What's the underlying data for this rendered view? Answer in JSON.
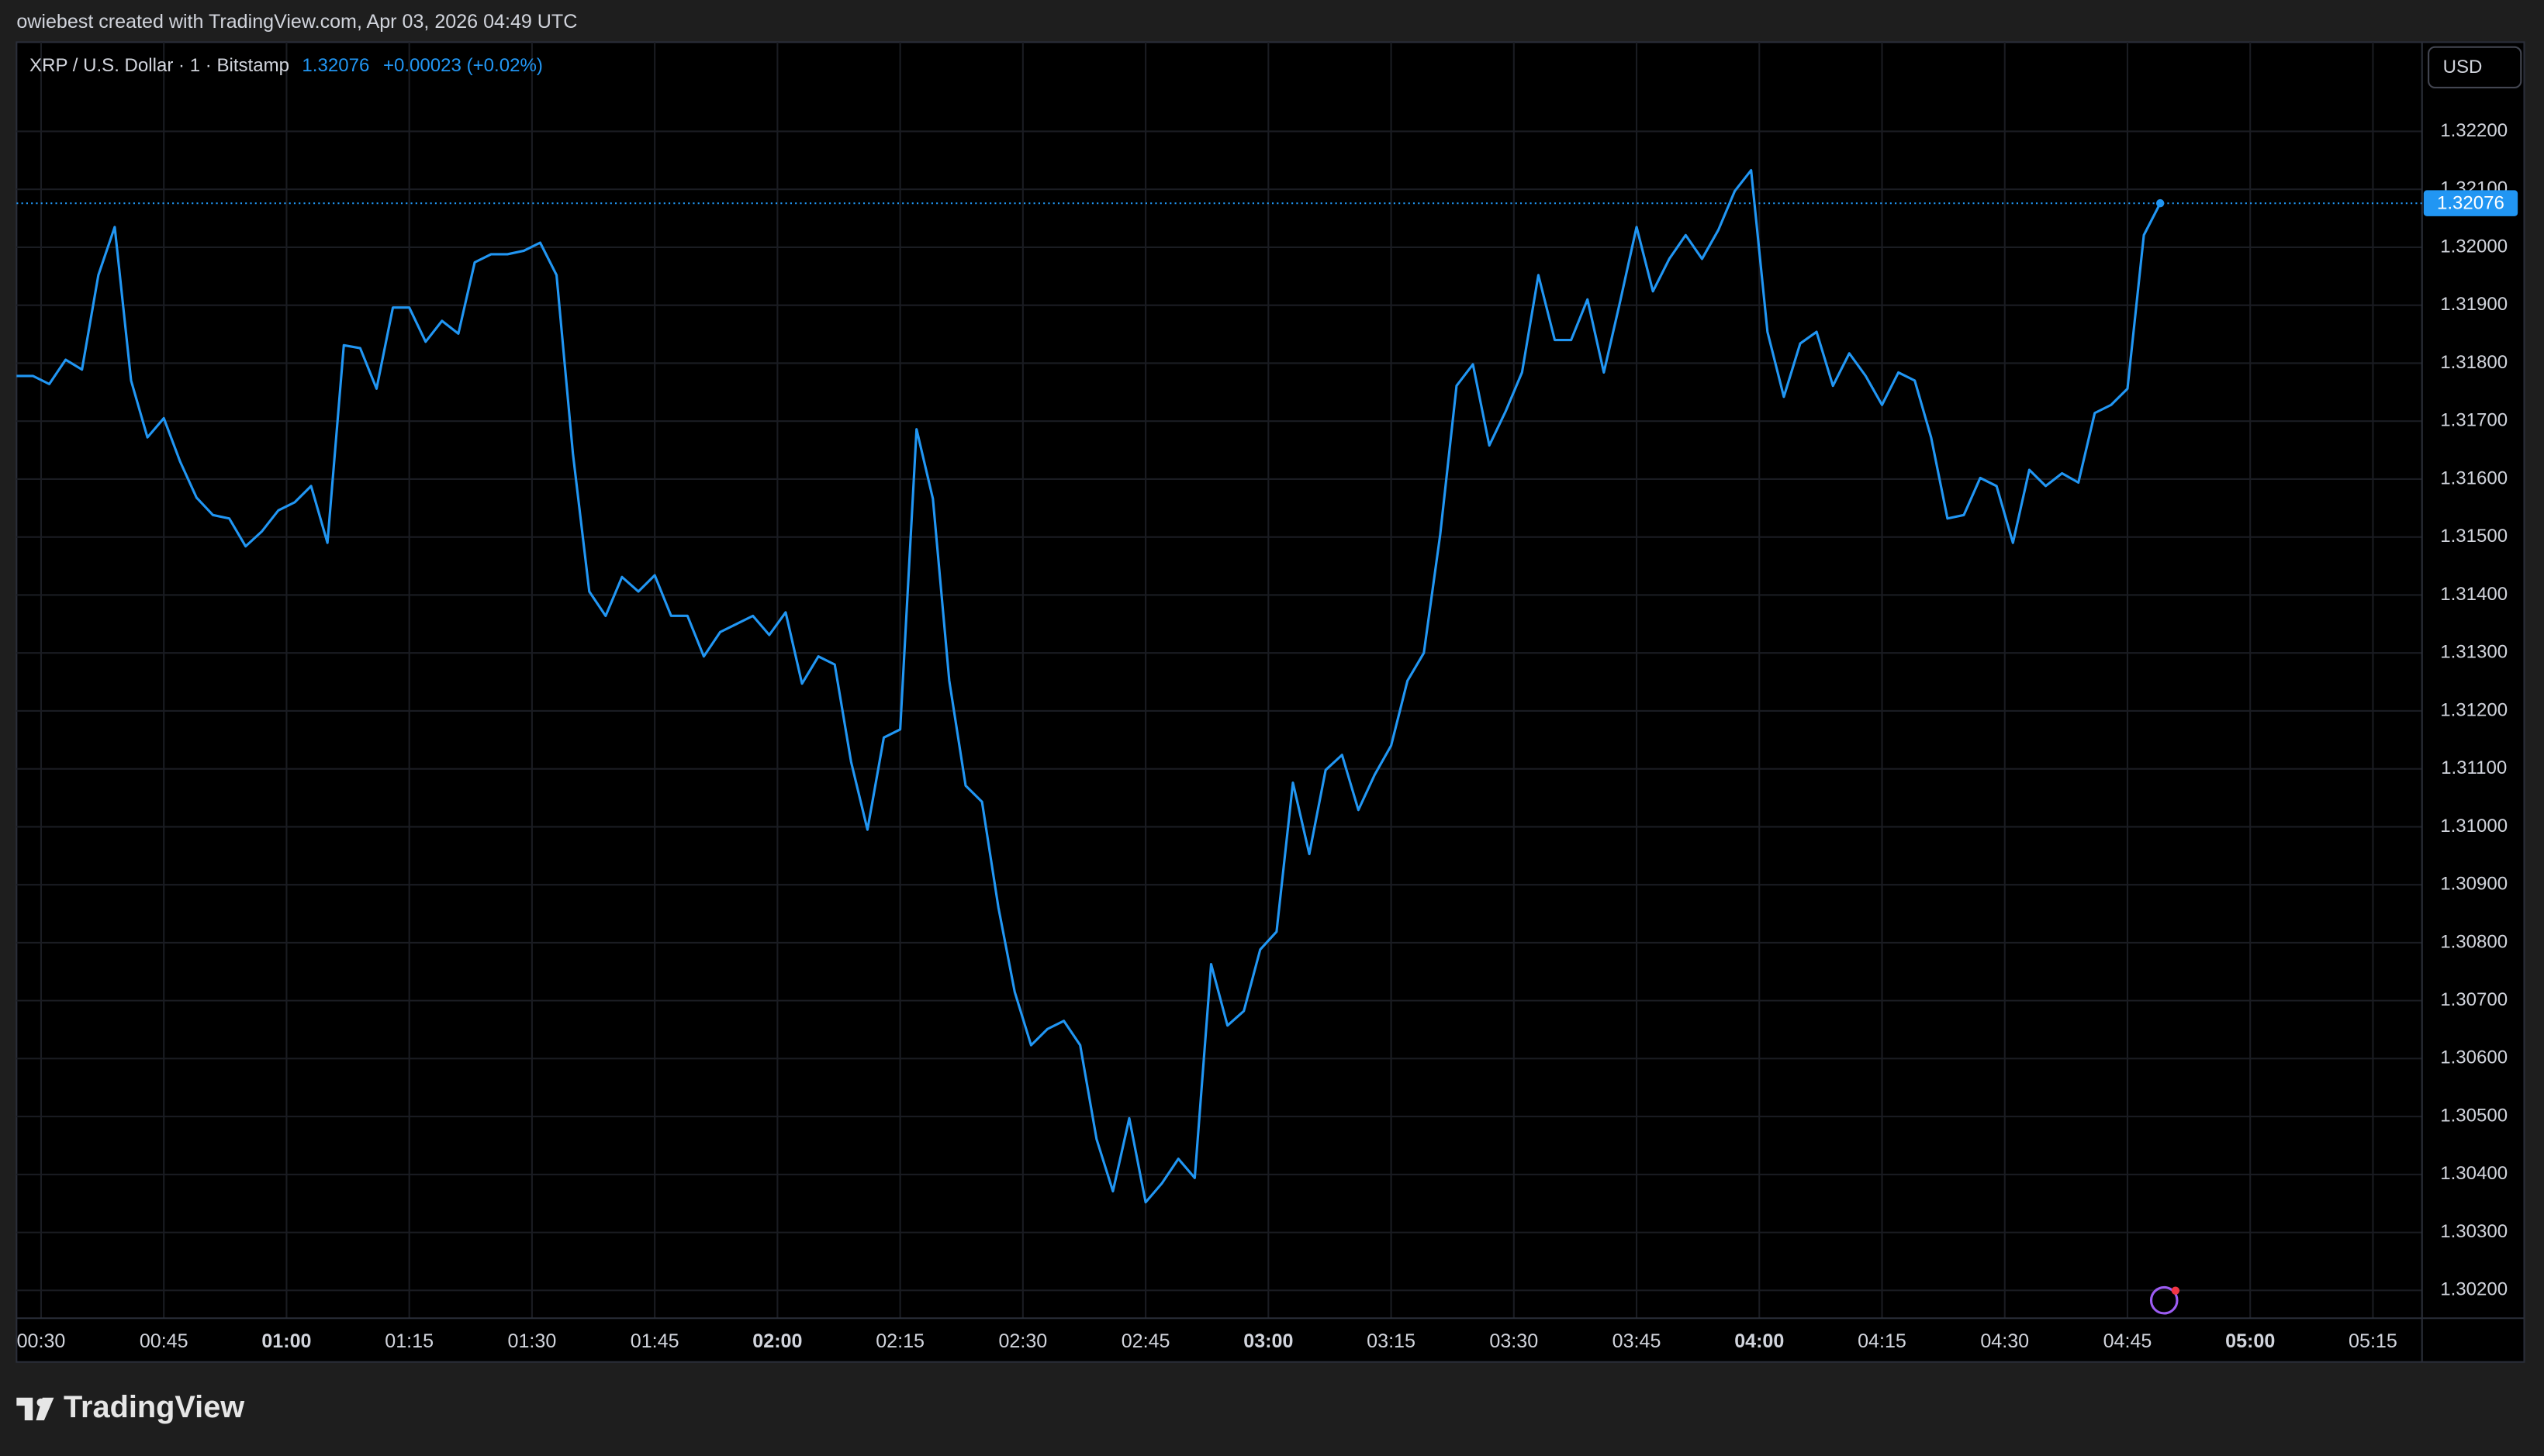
{
  "header": "owiebest created with TradingView.com, Apr 03, 2026 04:49 UTC",
  "brand": "TradingView",
  "chart_data": {
    "type": "line",
    "currency": "USD",
    "last_price": 1.32076,
    "change": "+0.00023 (+0.02%)",
    "x": [
      "00:27",
      "00:29",
      "00:31",
      "00:33",
      "00:35",
      "00:37",
      "00:39",
      "00:41",
      "00:43",
      "00:45",
      "00:47",
      "00:49",
      "00:51",
      "00:53",
      "00:55",
      "00:57",
      "00:59",
      "01:01",
      "01:03",
      "01:05",
      "01:07",
      "01:09",
      "01:11",
      "01:13",
      "01:15",
      "01:17",
      "01:19",
      "01:21",
      "01:23",
      "01:25",
      "01:27",
      "01:29",
      "01:31",
      "01:33",
      "01:35",
      "01:37",
      "01:39",
      "01:41",
      "01:43",
      "01:45",
      "01:47",
      "01:49",
      "01:51",
      "01:53",
      "01:55",
      "01:57",
      "01:59",
      "02:01",
      "02:03",
      "02:05",
      "02:07",
      "02:09",
      "02:11",
      "02:13",
      "02:15",
      "02:17",
      "02:19",
      "02:21",
      "02:23",
      "02:25",
      "02:27",
      "02:29",
      "02:31",
      "02:33",
      "02:35",
      "02:37",
      "02:39",
      "02:41",
      "02:43",
      "02:45",
      "02:47",
      "02:49",
      "02:51",
      "02:53",
      "02:55",
      "02:57",
      "02:59",
      "03:01",
      "03:03",
      "03:05",
      "03:07",
      "03:09",
      "03:11",
      "03:13",
      "03:15",
      "03:17",
      "03:19",
      "03:21",
      "03:23",
      "03:25",
      "03:27",
      "03:29",
      "03:31",
      "03:33",
      "03:35",
      "03:37",
      "03:39",
      "03:41",
      "03:43",
      "03:45",
      "03:47",
      "03:49",
      "03:51",
      "03:53",
      "03:55",
      "03:57",
      "03:59",
      "04:01",
      "04:03",
      "04:05",
      "04:07",
      "04:09",
      "04:11",
      "04:13",
      "04:15",
      "04:17",
      "04:19",
      "04:21",
      "04:23",
      "04:25",
      "04:27",
      "04:29",
      "04:31",
      "04:33",
      "04:35",
      "04:37",
      "04:39",
      "04:41",
      "04:43",
      "04:45",
      "04:47",
      "04:49"
    ],
    "series": [
      {
        "name": "XRP / U.S. Dollar · 1 · Bitstamp",
        "color": "#2196f3",
        "values": [
          1.31778,
          1.31778,
          1.31764,
          1.31806,
          1.31789,
          1.31952,
          1.32035,
          1.3177,
          1.31672,
          1.31705,
          1.3163,
          1.31568,
          1.31538,
          1.31532,
          1.31484,
          1.3151,
          1.31546,
          1.3156,
          1.31588,
          1.3149,
          1.31831,
          1.31826,
          1.31756,
          1.31896,
          1.31896,
          1.31837,
          1.31873,
          1.31851,
          1.31974,
          1.31988,
          1.31988,
          1.31994,
          1.32008,
          1.31952,
          1.31644,
          1.31406,
          1.31364,
          1.31431,
          1.31406,
          1.31434,
          1.31364,
          1.31364,
          1.31294,
          1.31336,
          1.3135,
          1.31364,
          1.31331,
          1.3137,
          1.31247,
          1.31294,
          1.3128,
          1.31112,
          1.30995,
          1.31154,
          1.31168,
          1.31686,
          1.31566,
          1.31252,
          1.31071,
          1.31043,
          1.30861,
          1.30715,
          1.30623,
          1.30651,
          1.30665,
          1.30623,
          1.30461,
          1.30371,
          1.30497,
          1.30352,
          1.30385,
          1.30427,
          1.30394,
          1.30763,
          1.30657,
          1.30682,
          1.30788,
          1.30819,
          1.31076,
          1.30953,
          1.31098,
          1.31124,
          1.31029,
          1.3109,
          1.3114,
          1.31252,
          1.313,
          1.31504,
          1.31761,
          1.31798,
          1.31658,
          1.31717,
          1.31784,
          1.31952,
          1.3184,
          1.3184,
          1.3191,
          1.31784,
          1.31907,
          1.32035,
          1.31924,
          1.3198,
          1.32021,
          1.3198,
          1.3203,
          1.32097,
          1.32133,
          1.31854,
          1.31742,
          1.31834,
          1.31854,
          1.31761,
          1.31817,
          1.31778,
          1.31728,
          1.31784,
          1.3177,
          1.31672,
          1.31532,
          1.31538,
          1.31602,
          1.31588,
          1.3149,
          1.31616,
          1.31588,
          1.3161,
          1.31594,
          1.31714,
          1.31728,
          1.31756,
          1.32021,
          1.32076
        ]
      }
    ],
    "xlim": [
      "00:27",
      "05:21"
    ],
    "xticks": [
      "00:30",
      "00:45",
      "01:00",
      "01:15",
      "01:30",
      "01:45",
      "02:00",
      "02:15",
      "02:30",
      "02:45",
      "03:00",
      "03:15",
      "03:30",
      "03:45",
      "04:00",
      "04:15",
      "04:30",
      "04:45",
      "05:00",
      "05:15"
    ],
    "ylim": [
      1.30152,
      1.32354
    ],
    "yticks": [
      {
        "value": 1.302,
        "label": "1.30200"
      },
      {
        "value": 1.303,
        "label": "1.30300"
      },
      {
        "value": 1.304,
        "label": "1.30400"
      },
      {
        "value": 1.305,
        "label": "1.30500"
      },
      {
        "value": 1.306,
        "label": "1.30600"
      },
      {
        "value": 1.307,
        "label": "1.30700"
      },
      {
        "value": 1.308,
        "label": "1.30800"
      },
      {
        "value": 1.309,
        "label": "1.30900"
      },
      {
        "value": 1.31,
        "label": "1.31000"
      },
      {
        "value": 1.311,
        "label": "1.31100"
      },
      {
        "value": 1.312,
        "label": "1.31200"
      },
      {
        "value": 1.313,
        "label": "1.31300"
      },
      {
        "value": 1.314,
        "label": "1.31400"
      },
      {
        "value": 1.315,
        "label": "1.31500"
      },
      {
        "value": 1.316,
        "label": "1.31600"
      },
      {
        "value": 1.317,
        "label": "1.31700"
      },
      {
        "value": 1.318,
        "label": "1.31800"
      },
      {
        "value": 1.319,
        "label": "1.31900"
      },
      {
        "value": 1.32,
        "label": "1.32000"
      },
      {
        "value": 1.321,
        "label": "1.32100"
      },
      {
        "value": 1.322,
        "label": "1.32200"
      }
    ],
    "grid": true
  }
}
